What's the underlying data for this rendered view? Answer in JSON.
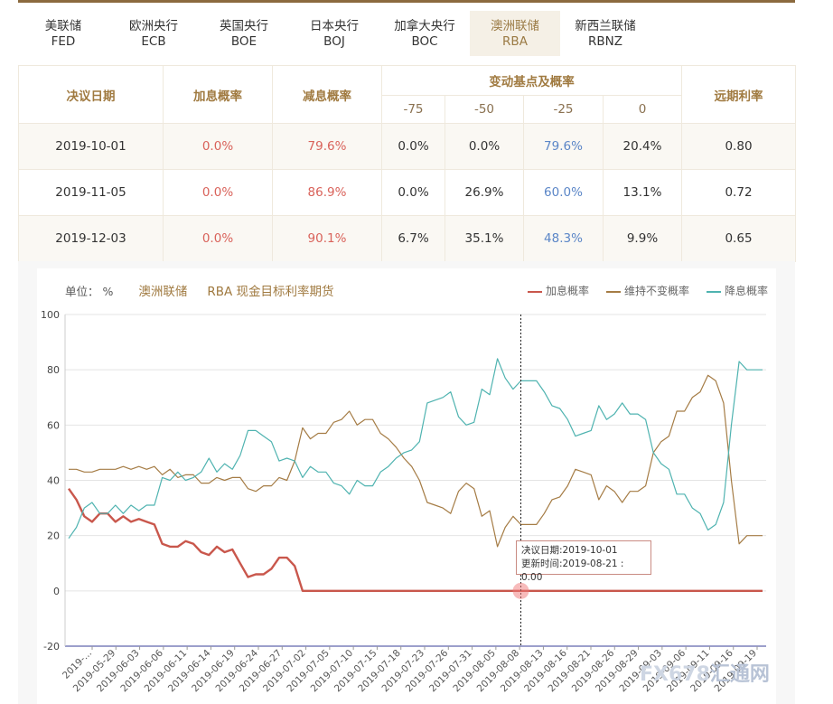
{
  "tabs": [
    {
      "cn": "美联储",
      "en": "FED"
    },
    {
      "cn": "欧洲央行",
      "en": "ECB"
    },
    {
      "cn": "英国央行",
      "en": "BOE"
    },
    {
      "cn": "日本央行",
      "en": "BOJ"
    },
    {
      "cn": "加拿大央行",
      "en": "BOC"
    },
    {
      "cn": "澳洲联储",
      "en": "RBA"
    },
    {
      "cn": "新西兰联储",
      "en": "RBNZ"
    }
  ],
  "active_tab": 5,
  "table": {
    "headers": {
      "date": "决议日期",
      "hike": "加息概率",
      "cut": "减息概率",
      "bp_group": "变动基点及概率",
      "bp": [
        "-75",
        "-50",
        "-25",
        "0"
      ],
      "forward": "远期利率"
    },
    "rows": [
      {
        "date": "2019-10-01",
        "hike": "0.0%",
        "cut": "79.6%",
        "bp": [
          "0.0%",
          "0.0%",
          "79.6%",
          "20.4%"
        ],
        "forward": "0.80"
      },
      {
        "date": "2019-11-05",
        "hike": "0.0%",
        "cut": "86.9%",
        "bp": [
          "0.0%",
          "26.9%",
          "60.0%",
          "13.1%"
        ],
        "forward": "0.72"
      },
      {
        "date": "2019-12-03",
        "hike": "0.0%",
        "cut": "90.1%",
        "bp": [
          "6.7%",
          "35.1%",
          "48.3%",
          "9.9%"
        ],
        "forward": "0.65"
      }
    ]
  },
  "chart_head": {
    "unit": "单位： %",
    "bank": "澳洲联储",
    "subtitle": "RBA 现金目标利率期货"
  },
  "tooltip": {
    "line1": "决议日期:2019-10-01",
    "line2": "更新时间:2019-08-21 : 0.00"
  },
  "watermark": {
    "fx": "FX678",
    "cn": "汇通网"
  },
  "colors": {
    "hike": "#c9574c",
    "hold": "#a57c45",
    "cut": "#4fb3b0",
    "accent": "#a07a40"
  },
  "chart_data": {
    "type": "line",
    "ylim": [
      -20,
      100
    ],
    "yticks": [
      -20,
      0,
      20,
      40,
      60,
      80,
      100
    ],
    "xticks": [
      "2019-...",
      "2019-05-29",
      "2019-06-03",
      "2019-06-06",
      "2019-06-11",
      "2019-06-14",
      "2019-06-19",
      "2019-06-24",
      "2019-06-27",
      "2019-07-02",
      "2019-07-05",
      "2019-07-10",
      "2019-07-15",
      "2019-07-18",
      "2019-07-23",
      "2019-07-26",
      "2019-07-31",
      "2019-08-05",
      "2019-08-08",
      "2019-08-13",
      "2019-08-16",
      "2019-08-21",
      "2019-08-26",
      "2019-08-29",
      "2019-09-03",
      "2019-09-06",
      "2019-09-11",
      "2019-09-16",
      "2019-09-19"
    ],
    "legend_position": "top-right",
    "grid": true,
    "highlight_index": 58,
    "series": [
      {
        "name": "加息概率",
        "color": "#c9574c",
        "values": [
          37,
          33,
          27,
          25,
          28,
          28,
          25,
          27,
          25,
          26,
          25,
          24,
          17,
          16,
          16,
          18,
          17,
          14,
          13,
          16,
          14,
          15,
          10,
          5,
          6,
          6,
          8,
          12,
          12,
          9,
          0,
          0,
          0,
          0,
          0,
          0,
          0,
          0,
          0,
          0,
          0,
          0,
          0,
          0,
          0,
          0,
          0,
          0,
          0,
          0,
          0,
          0,
          0,
          0,
          0,
          0,
          0,
          0,
          0,
          0,
          0,
          0,
          0,
          0,
          0,
          0,
          0,
          0,
          0,
          0,
          0,
          0,
          0,
          0,
          0,
          0,
          0,
          0,
          0,
          0,
          0,
          0,
          0,
          0,
          0,
          0,
          0,
          0,
          0,
          0
        ]
      },
      {
        "name": "维持不变概率",
        "color": "#a57c45",
        "values": [
          44,
          44,
          43,
          43,
          44,
          44,
          44,
          45,
          44,
          45,
          44,
          45,
          42,
          44,
          41,
          42,
          42,
          39,
          39,
          41,
          40,
          41,
          41,
          37,
          36,
          38,
          38,
          41,
          40,
          47,
          59,
          55,
          57,
          57,
          61,
          62,
          65,
          60,
          62,
          62,
          57,
          55,
          52,
          48,
          45,
          40,
          32,
          31,
          30,
          28,
          36,
          39,
          37,
          27,
          29,
          16,
          23,
          27,
          24,
          24,
          24,
          28,
          33,
          34,
          38,
          44,
          43,
          42,
          33,
          38,
          36,
          32,
          36,
          36,
          38,
          50,
          54,
          56,
          65,
          65,
          70,
          72,
          78,
          76,
          68,
          40,
          17,
          20,
          20,
          20
        ]
      },
      {
        "name": "降息概率",
        "color": "#4fb3b0",
        "values": [
          19,
          23,
          30,
          32,
          28,
          28,
          31,
          28,
          31,
          29,
          31,
          31,
          41,
          40,
          43,
          40,
          41,
          43,
          48,
          43,
          46,
          44,
          49,
          58,
          58,
          56,
          54,
          47,
          48,
          47,
          41,
          45,
          43,
          43,
          39,
          38,
          35,
          40,
          38,
          38,
          43,
          45,
          48,
          50,
          51,
          54,
          68,
          69,
          70,
          72,
          63,
          60,
          61,
          73,
          71,
          84,
          77,
          73,
          76,
          76,
          76,
          72,
          67,
          66,
          62,
          56,
          57,
          58,
          67,
          62,
          64,
          68,
          64,
          64,
          62,
          50,
          46,
          44,
          35,
          35,
          30,
          28,
          22,
          24,
          32,
          60,
          83,
          80,
          80,
          80
        ]
      }
    ]
  }
}
